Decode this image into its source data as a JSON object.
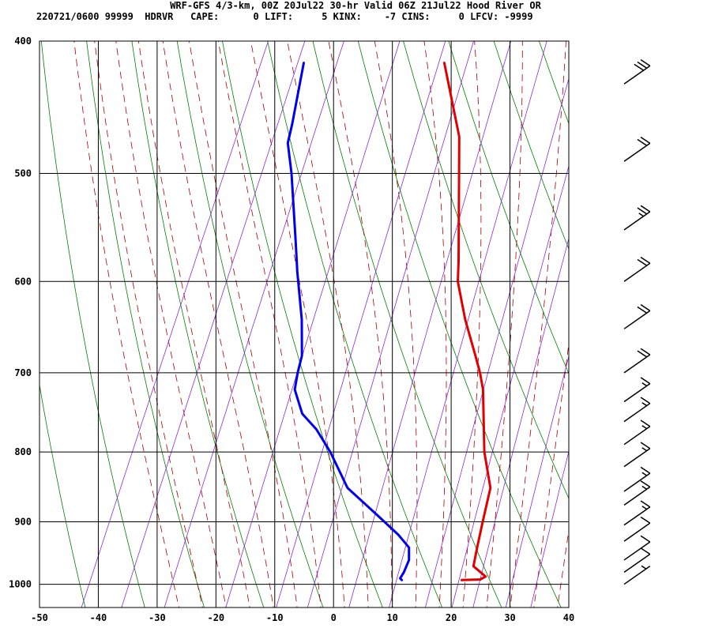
{
  "header": {
    "title": "WRF-GFS 4/3-km, 00Z 20Jul22 30-hr Valid 06Z 21Jul22 Hood River OR",
    "info": "220721/0600 99999  HDRVR   CAPE:      0 LIFT:     5 KINX:    -7 CINS:     0 LFCV: -9999"
  },
  "chart_data": {
    "type": "line",
    "subtype": "skew-T log-P sounding",
    "xlabel": "",
    "ylabel": "",
    "x_ticks": [
      -50,
      -40,
      -30,
      -20,
      -10,
      0,
      10,
      20,
      30,
      40
    ],
    "y_ticks": [
      400,
      500,
      600,
      700,
      800,
      900,
      1000
    ],
    "xlim": [
      -50,
      40
    ],
    "ylim": [
      1040,
      400
    ],
    "grid": true,
    "series": [
      {
        "name": "Temperature",
        "color": "#e00000",
        "points": [
          {
            "p": 993,
            "x": 21.5
          },
          {
            "p": 992,
            "x": 24.6
          },
          {
            "p": 987,
            "x": 25.3
          },
          {
            "p": 970,
            "x": 22.5
          },
          {
            "p": 940,
            "x": 21.8
          },
          {
            "p": 900,
            "x": 20.9
          },
          {
            "p": 850,
            "x": 19.8
          },
          {
            "p": 800,
            "x": 16.2
          },
          {
            "p": 720,
            "x": 11.5
          },
          {
            "p": 700,
            "x": 9.8
          },
          {
            "p": 680,
            "x": 7.8
          },
          {
            "p": 640,
            "x": 3.5
          },
          {
            "p": 600,
            "x": -0.5
          },
          {
            "p": 580,
            "x": -1.8
          },
          {
            "p": 500,
            "x": -8.0
          },
          {
            "p": 470,
            "x": -10.6
          },
          {
            "p": 415,
            "x": -18.4
          }
        ]
      },
      {
        "name": "Dewpoint",
        "color": "#0000ee",
        "points": [
          {
            "p": 993,
            "x": 11.3
          },
          {
            "p": 990,
            "x": 10.9
          },
          {
            "p": 980,
            "x": 11.1
          },
          {
            "p": 960,
            "x": 11.1
          },
          {
            "p": 940,
            "x": 10.2
          },
          {
            "p": 920,
            "x": 7.5
          },
          {
            "p": 890,
            "x": 2.5
          },
          {
            "p": 850,
            "x": -4.5
          },
          {
            "p": 800,
            "x": -10.0
          },
          {
            "p": 770,
            "x": -14.0
          },
          {
            "p": 750,
            "x": -17.5
          },
          {
            "p": 720,
            "x": -20.5
          },
          {
            "p": 700,
            "x": -21.2
          },
          {
            "p": 680,
            "x": -21.7
          },
          {
            "p": 640,
            "x": -24.3
          },
          {
            "p": 590,
            "x": -28.5
          },
          {
            "p": 560,
            "x": -31.0
          },
          {
            "p": 500,
            "x": -36.5
          },
          {
            "p": 475,
            "x": -39.3
          },
          {
            "p": 460,
            "x": -39.9
          },
          {
            "p": 415,
            "x": -42.3
          }
        ]
      }
    ],
    "wind_barbs": [
      {
        "p": 1000,
        "flags": 0,
        "full": 0,
        "half": 1
      },
      {
        "p": 980,
        "flags": 0,
        "full": 1,
        "half": 0
      },
      {
        "p": 960,
        "flags": 0,
        "full": 1,
        "half": 0
      },
      {
        "p": 930,
        "flags": 0,
        "full": 1,
        "half": 0
      },
      {
        "p": 905,
        "flags": 0,
        "full": 1,
        "half": 1
      },
      {
        "p": 875,
        "flags": 0,
        "full": 1,
        "half": 1
      },
      {
        "p": 855,
        "flags": 0,
        "full": 1,
        "half": 1
      },
      {
        "p": 820,
        "flags": 0,
        "full": 1,
        "half": 1
      },
      {
        "p": 790,
        "flags": 0,
        "full": 1,
        "half": 1
      },
      {
        "p": 760,
        "flags": 0,
        "full": 1,
        "half": 1
      },
      {
        "p": 735,
        "flags": 0,
        "full": 1,
        "half": 1
      },
      {
        "p": 700,
        "flags": 0,
        "full": 2,
        "half": 0
      },
      {
        "p": 650,
        "flags": 0,
        "full": 2,
        "half": 0
      },
      {
        "p": 600,
        "flags": 0,
        "full": 2,
        "half": 0
      },
      {
        "p": 550,
        "flags": 0,
        "full": 2,
        "half": 1
      },
      {
        "p": 490,
        "flags": 0,
        "full": 2,
        "half": 0
      },
      {
        "p": 430,
        "flags": 0,
        "full": 3,
        "half": 0
      }
    ],
    "colors": {
      "isotherm": "#000000",
      "dry_adiabat": "#008000",
      "moist_adiabat": "#aa0000",
      "mixing_ratio": "#8a2be2"
    }
  }
}
